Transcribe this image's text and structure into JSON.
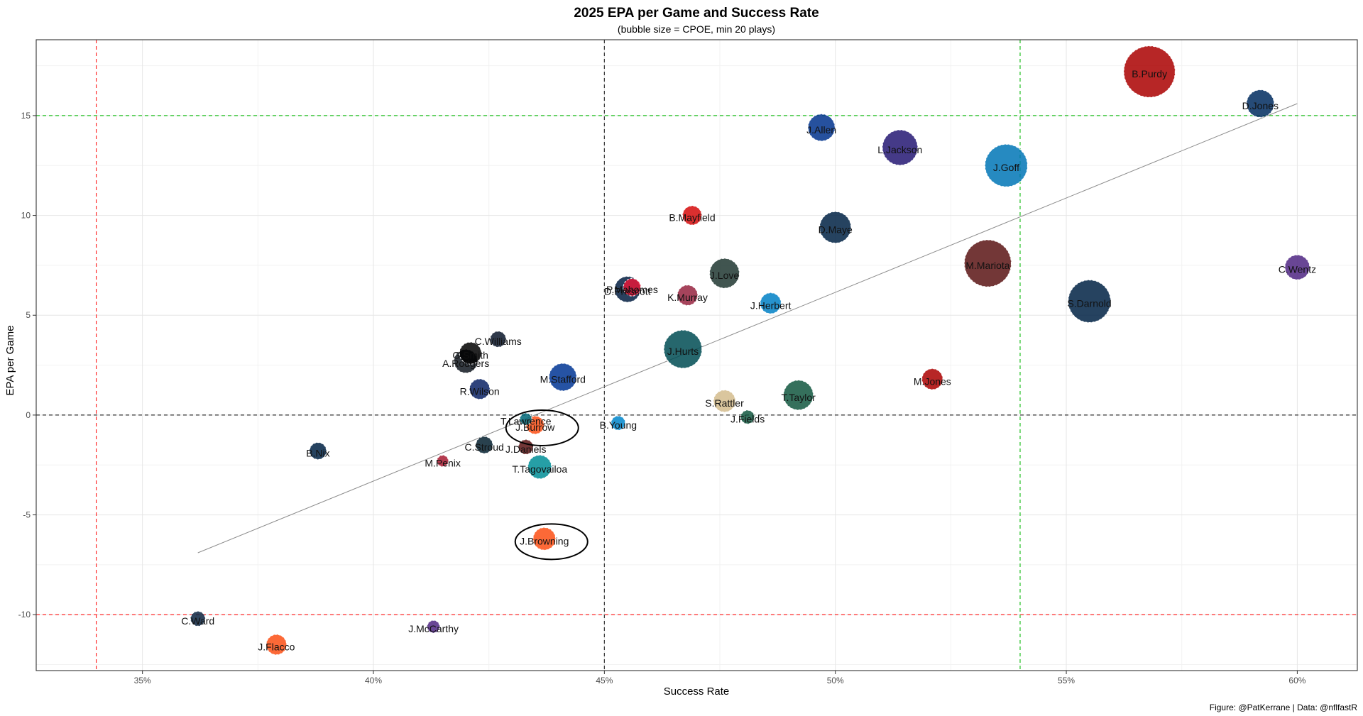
{
  "chart_data": {
    "type": "scatter",
    "title": "2025 EPA per Game and Success Rate",
    "subtitle": "(bubble size = CPOE, min 20 plays)",
    "xlabel": "Success Rate",
    "ylabel": "EPA per Game",
    "caption": "Figure: @PatKerrane | Data: @nflfastR",
    "xlim": [
      0.327,
      0.613
    ],
    "ylim": [
      -12.8,
      18.8
    ],
    "x_ticks": [
      0.35,
      0.4,
      0.45,
      0.5,
      0.55,
      0.6
    ],
    "x_tick_labels": [
      "35%",
      "40%",
      "45%",
      "50%",
      "55%",
      "60%"
    ],
    "y_ticks": [
      -10,
      -5,
      0,
      5,
      10,
      15
    ],
    "y_tick_labels": [
      "-10",
      "-5",
      "0",
      "5",
      "10",
      "15"
    ],
    "grid": true,
    "reference_lines": {
      "red_x": [
        0.34
      ],
      "red_y": [
        -10
      ],
      "green_x": [
        0.54
      ],
      "green_y": [
        15
      ],
      "black_x": [
        0.45
      ],
      "black_y": [
        0
      ]
    },
    "trend_line": {
      "x": [
        0.362,
        0.6
      ],
      "y": [
        -6.9,
        15.6
      ]
    },
    "circled": [
      "J.Burrow",
      "J.Browning"
    ],
    "points": [
      {
        "name": "B.Purdy",
        "x": 0.568,
        "y": 17.2,
        "size": 7.6,
        "color": "#AA0000"
      },
      {
        "name": "D.Jones",
        "x": 0.592,
        "y": 15.6,
        "size": 3.3,
        "color": "#002C5F"
      },
      {
        "name": "J.Allen",
        "x": 0.497,
        "y": 14.4,
        "size": 3.2,
        "color": "#00338D"
      },
      {
        "name": "L.Jackson",
        "x": 0.514,
        "y": 13.4,
        "size": 4.7,
        "color": "#241773"
      },
      {
        "name": "J.Goff",
        "x": 0.537,
        "y": 12.5,
        "size": 6.0,
        "color": "#0076B6"
      },
      {
        "name": "B.Mayfield",
        "x": 0.469,
        "y": 10.0,
        "size": 1.8,
        "color": "#D50A0A"
      },
      {
        "name": "D.Maye",
        "x": 0.5,
        "y": 9.4,
        "size": 4.0,
        "color": "#002244"
      },
      {
        "name": "M.Mariota",
        "x": 0.533,
        "y": 7.6,
        "size": 6.8,
        "color": "#5A1414"
      },
      {
        "name": "C.Wentz",
        "x": 0.6,
        "y": 7.4,
        "size": 2.8,
        "color": "#4F2683"
      },
      {
        "name": "J.Love",
        "x": 0.476,
        "y": 7.1,
        "size": 3.7,
        "color": "#203731"
      },
      {
        "name": "P.Mahomes",
        "x": 0.456,
        "y": 6.4,
        "size": 1.5,
        "color": "#E31837"
      },
      {
        "name": "D.Prescott",
        "x": 0.455,
        "y": 6.3,
        "size": 3.0,
        "color": "#041E42"
      },
      {
        "name": "K.Murray",
        "x": 0.468,
        "y": 6.0,
        "size": 2.0,
        "color": "#97233F"
      },
      {
        "name": "J.Herbert",
        "x": 0.486,
        "y": 5.6,
        "size": 2.1,
        "color": "#0080C6"
      },
      {
        "name": "S.Darnold",
        "x": 0.555,
        "y": 5.7,
        "size": 6.0,
        "color": "#002244"
      },
      {
        "name": "C.Williams",
        "x": 0.427,
        "y": 3.8,
        "size": 1.2,
        "color": "#0B162A"
      },
      {
        "name": "G.Smith",
        "x": 0.421,
        "y": 3.1,
        "size": 2.3,
        "color": "#000000"
      },
      {
        "name": "A.Rodgers",
        "x": 0.42,
        "y": 2.7,
        "size": 2.6,
        "color": "#101820"
      },
      {
        "name": "J.Hurts",
        "x": 0.467,
        "y": 3.3,
        "size": 5.2,
        "color": "#004C54"
      },
      {
        "name": "M.Stafford",
        "x": 0.441,
        "y": 1.9,
        "size": 3.3,
        "color": "#003594"
      },
      {
        "name": "R.Wilson",
        "x": 0.423,
        "y": 1.3,
        "size": 2.0,
        "color": "#0B2265"
      },
      {
        "name": "T.Taylor",
        "x": 0.492,
        "y": 1.0,
        "size": 3.7,
        "color": "#125740"
      },
      {
        "name": "S.Rattler",
        "x": 0.476,
        "y": 0.7,
        "size": 2.3,
        "color": "#D3BC8D"
      },
      {
        "name": "M.Jones",
        "x": 0.521,
        "y": 1.8,
        "size": 2.1,
        "color": "#AA0000"
      },
      {
        "name": "J.Fields",
        "x": 0.481,
        "y": -0.1,
        "size": 0.8,
        "color": "#125740"
      },
      {
        "name": "T.Lawrence",
        "x": 0.433,
        "y": -0.2,
        "size": 0.5,
        "color": "#006778"
      },
      {
        "name": "J.Burrow",
        "x": 0.435,
        "y": -0.5,
        "size": 1.6,
        "color": "#FB4F14"
      },
      {
        "name": "B.Young",
        "x": 0.453,
        "y": -0.4,
        "size": 0.9,
        "color": "#0085CA"
      },
      {
        "name": "C.Stroud",
        "x": 0.424,
        "y": -1.5,
        "size": 1.4,
        "color": "#03202F"
      },
      {
        "name": "J.Daniels",
        "x": 0.433,
        "y": -1.6,
        "size": 1.0,
        "color": "#5A1414"
      },
      {
        "name": "B.Nix",
        "x": 0.388,
        "y": -1.8,
        "size": 1.4,
        "color": "#002244"
      },
      {
        "name": "M.Penix",
        "x": 0.415,
        "y": -2.3,
        "size": 0.4,
        "color": "#A71930"
      },
      {
        "name": "T.Tagovailoa",
        "x": 0.436,
        "y": -2.6,
        "size": 2.6,
        "color": "#008E97"
      },
      {
        "name": "J.Browning",
        "x": 0.437,
        "y": -6.2,
        "size": 2.4,
        "color": "#FB4F14"
      },
      {
        "name": "C.Ward",
        "x": 0.362,
        "y": -10.2,
        "size": 1.0,
        "color": "#0C2340"
      },
      {
        "name": "J.Flacco",
        "x": 0.379,
        "y": -11.5,
        "size": 2.0,
        "color": "#FB4F14"
      },
      {
        "name": "J.McCarthy",
        "x": 0.413,
        "y": -10.6,
        "size": 0.6,
        "color": "#4F2683"
      }
    ]
  }
}
